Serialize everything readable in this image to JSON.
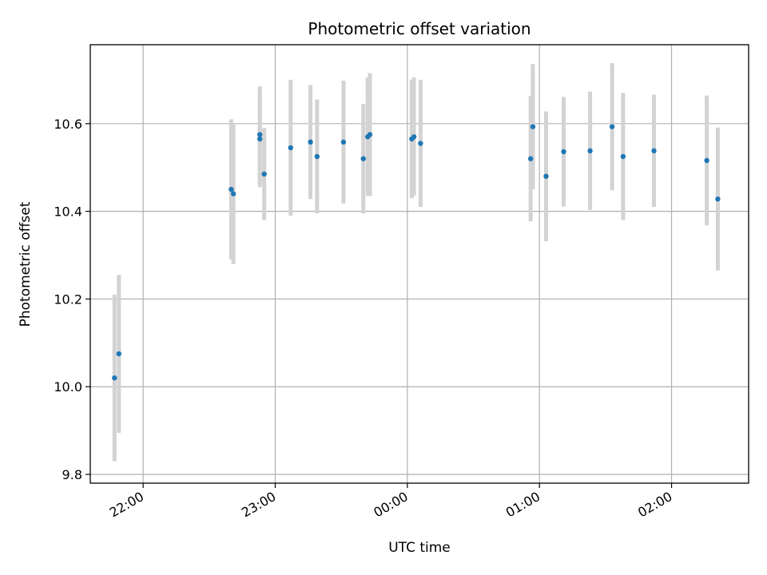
{
  "chart_data": {
    "type": "scatter",
    "title": "Photometric offset variation",
    "xlabel": "UTC time",
    "ylabel": "Photometric offset",
    "x_axis": {
      "kind": "time",
      "range": [
        "21:36",
        "02:35"
      ],
      "ticks": [
        "22:00",
        "23:00",
        "00:00",
        "01:00",
        "02:00"
      ]
    },
    "y_axis": {
      "range": [
        9.78,
        10.78
      ],
      "ticks": [
        "9.8",
        "10.0",
        "10.2",
        "10.4",
        "10.6"
      ]
    },
    "grid": true,
    "colors": {
      "point": "#1f77b4",
      "errorbar": "#d3d3d3",
      "grid": "#b0b0b0"
    },
    "points": [
      {
        "t": "21:47",
        "y": 10.02,
        "err": 0.19
      },
      {
        "t": "21:49",
        "y": 10.075,
        "err": 0.18
      },
      {
        "t": "22:40",
        "y": 10.45,
        "err": 0.16
      },
      {
        "t": "22:41",
        "y": 10.44,
        "err": 0.16
      },
      {
        "t": "22:53",
        "y": 10.565,
        "err": 0.11
      },
      {
        "t": "22:53",
        "y": 10.575,
        "err": 0.11
      },
      {
        "t": "22:55",
        "y": 10.485,
        "err": 0.105
      },
      {
        "t": "23:07",
        "y": 10.545,
        "err": 0.155
      },
      {
        "t": "23:16",
        "y": 10.558,
        "err": 0.13
      },
      {
        "t": "23:19",
        "y": 10.525,
        "err": 0.13
      },
      {
        "t": "23:31",
        "y": 10.558,
        "err": 0.14
      },
      {
        "t": "23:40",
        "y": 10.52,
        "err": 0.125
      },
      {
        "t": "23:42",
        "y": 10.57,
        "err": 0.135
      },
      {
        "t": "23:43",
        "y": 10.575,
        "err": 0.14
      },
      {
        "t": "00:02",
        "y": 10.565,
        "err": 0.135
      },
      {
        "t": "00:03",
        "y": 10.57,
        "err": 0.135
      },
      {
        "t": "00:06",
        "y": 10.555,
        "err": 0.145
      },
      {
        "t": "00:56",
        "y": 10.52,
        "err": 0.143
      },
      {
        "t": "00:57",
        "y": 10.593,
        "err": 0.143
      },
      {
        "t": "01:03",
        "y": 10.48,
        "err": 0.148
      },
      {
        "t": "01:11",
        "y": 10.536,
        "err": 0.125
      },
      {
        "t": "01:23",
        "y": 10.538,
        "err": 0.135
      },
      {
        "t": "01:33",
        "y": 10.593,
        "err": 0.145
      },
      {
        "t": "01:38",
        "y": 10.525,
        "err": 0.145
      },
      {
        "t": "01:52",
        "y": 10.538,
        "err": 0.128
      },
      {
        "t": "02:16",
        "y": 10.516,
        "err": 0.148
      },
      {
        "t": "02:21",
        "y": 10.428,
        "err": 0.163
      }
    ]
  }
}
